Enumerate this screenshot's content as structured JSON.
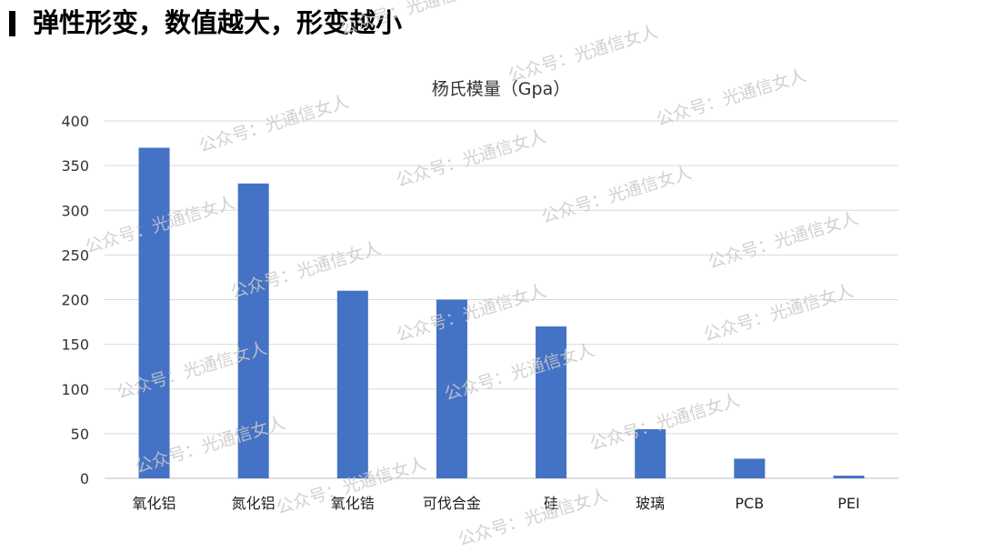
{
  "header": {
    "title": "弹性形变，数值越大，形变越小"
  },
  "watermark_text": "公众号：光通信女人",
  "chart_data": {
    "type": "bar",
    "title": "杨氏模量（Gpa）",
    "xlabel": "",
    "ylabel": "",
    "categories": [
      "氧化铝",
      "氮化铝",
      "氧化锆",
      "可伐合金",
      "硅",
      "玻璃",
      "PCB",
      "PEI"
    ],
    "values": [
      370,
      330,
      210,
      200,
      170,
      55,
      22,
      3
    ],
    "ylim": [
      0,
      400
    ],
    "yticks": [
      0,
      50,
      100,
      150,
      200,
      250,
      300,
      350,
      400
    ],
    "grid": true,
    "legend": "none",
    "colors": {
      "bar": "#4472C4",
      "grid": "#d9d9d9",
      "axis": "#bfbfbf"
    }
  }
}
